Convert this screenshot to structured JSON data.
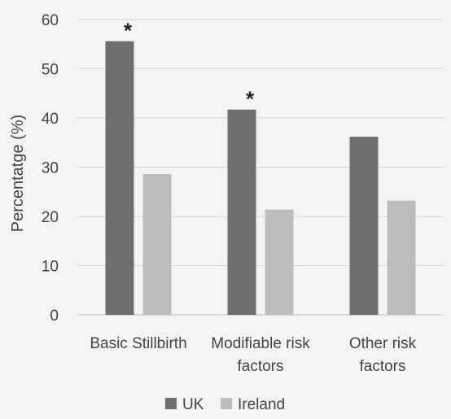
{
  "chart_data": {
    "type": "bar",
    "ylabel": "Percentatge (%)",
    "ylim": [
      0,
      60
    ],
    "yticks": [
      0,
      10,
      20,
      30,
      40,
      50,
      60
    ],
    "grid": true,
    "legend_position": "bottom",
    "categories": [
      [
        "Basic Stillbirth"
      ],
      [
        "Modifiable risk",
        "factors"
      ],
      [
        "Other risk",
        "factors"
      ]
    ],
    "series": [
      {
        "name": "UK",
        "color": "#6e6e6e",
        "values": [
          55.6,
          41.7,
          36.2
        ]
      },
      {
        "name": "Ireland",
        "color": "#bcbcbc",
        "values": [
          28.6,
          21.4,
          23.2
        ]
      }
    ],
    "annotations": [
      {
        "category_index": 0,
        "text": "*"
      },
      {
        "category_index": 1,
        "text": "*"
      }
    ]
  }
}
